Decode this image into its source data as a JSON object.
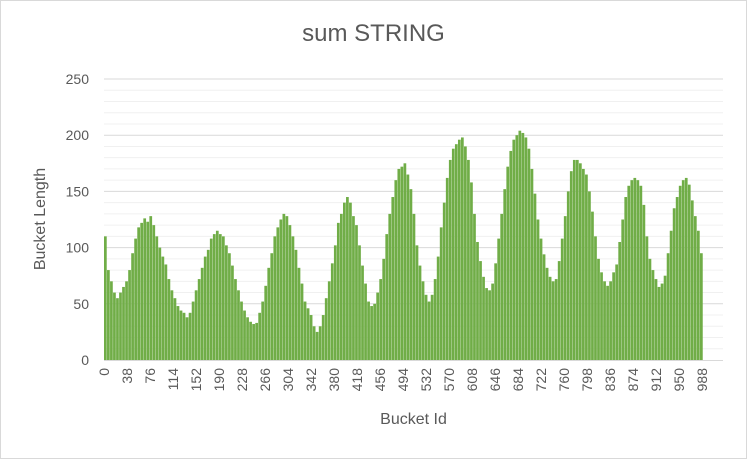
{
  "chart_data": {
    "type": "bar",
    "title": "sum STRING",
    "xlabel": "Bucket Id",
    "ylabel": "Bucket Length",
    "ylim": [
      0,
      250
    ],
    "yticks": [
      0,
      50,
      100,
      150,
      200,
      250
    ],
    "xlim": [
      0,
      1023
    ],
    "xticks": [
      "0",
      "38",
      "76",
      "114",
      "152",
      "190",
      "228",
      "266",
      "304",
      "342",
      "380",
      "418",
      "456",
      "494",
      "532",
      "570",
      "608",
      "646",
      "684",
      "722",
      "760",
      "798",
      "836",
      "874",
      "912",
      "950",
      "988"
    ],
    "grid": "horizontal",
    "legend": "none",
    "bar_color": "#70ad47",
    "series": [
      {
        "x_step": 5,
        "values": [
          110,
          80,
          70,
          60,
          55,
          60,
          65,
          70,
          80,
          95,
          108,
          118,
          122,
          126,
          123,
          128,
          120,
          110,
          100,
          92,
          85,
          72,
          62,
          55,
          48,
          44,
          42,
          38,
          42,
          52,
          62,
          72,
          82,
          92,
          98,
          108,
          112,
          115,
          112,
          110,
          102,
          95,
          84,
          72,
          62,
          52,
          44,
          38,
          34,
          32,
          33,
          42,
          52,
          66,
          82,
          95,
          110,
          118,
          125,
          130,
          128,
          120,
          110,
          98,
          82,
          68,
          52,
          46,
          40,
          30,
          25,
          30,
          40,
          55,
          70,
          86,
          102,
          122,
          130,
          140,
          145,
          140,
          128,
          120,
          102,
          84,
          68,
          52,
          48,
          50,
          60,
          72,
          90,
          112,
          130,
          145,
          160,
          170,
          172,
          175,
          165,
          152,
          130,
          102,
          84,
          70,
          58,
          52,
          58,
          72,
          92,
          118,
          140,
          162,
          178,
          188,
          192,
          196,
          198,
          190,
          178,
          158,
          130,
          105,
          88,
          74,
          64,
          62,
          68,
          86,
          108,
          130,
          152,
          172,
          186,
          196,
          200,
          204,
          202,
          198,
          188,
          170,
          148,
          125,
          108,
          94,
          82,
          74,
          70,
          72,
          88,
          108,
          128,
          150,
          168,
          178,
          178,
          175,
          170,
          165,
          150,
          132,
          110,
          90,
          78,
          70,
          66,
          70,
          78,
          85,
          105,
          125,
          145,
          155,
          160,
          162,
          160,
          155,
          138,
          110,
          90,
          80,
          72,
          65,
          68,
          75,
          95,
          115,
          135,
          145,
          155,
          160,
          162,
          156,
          142,
          128,
          115,
          95
        ]
      }
    ]
  }
}
